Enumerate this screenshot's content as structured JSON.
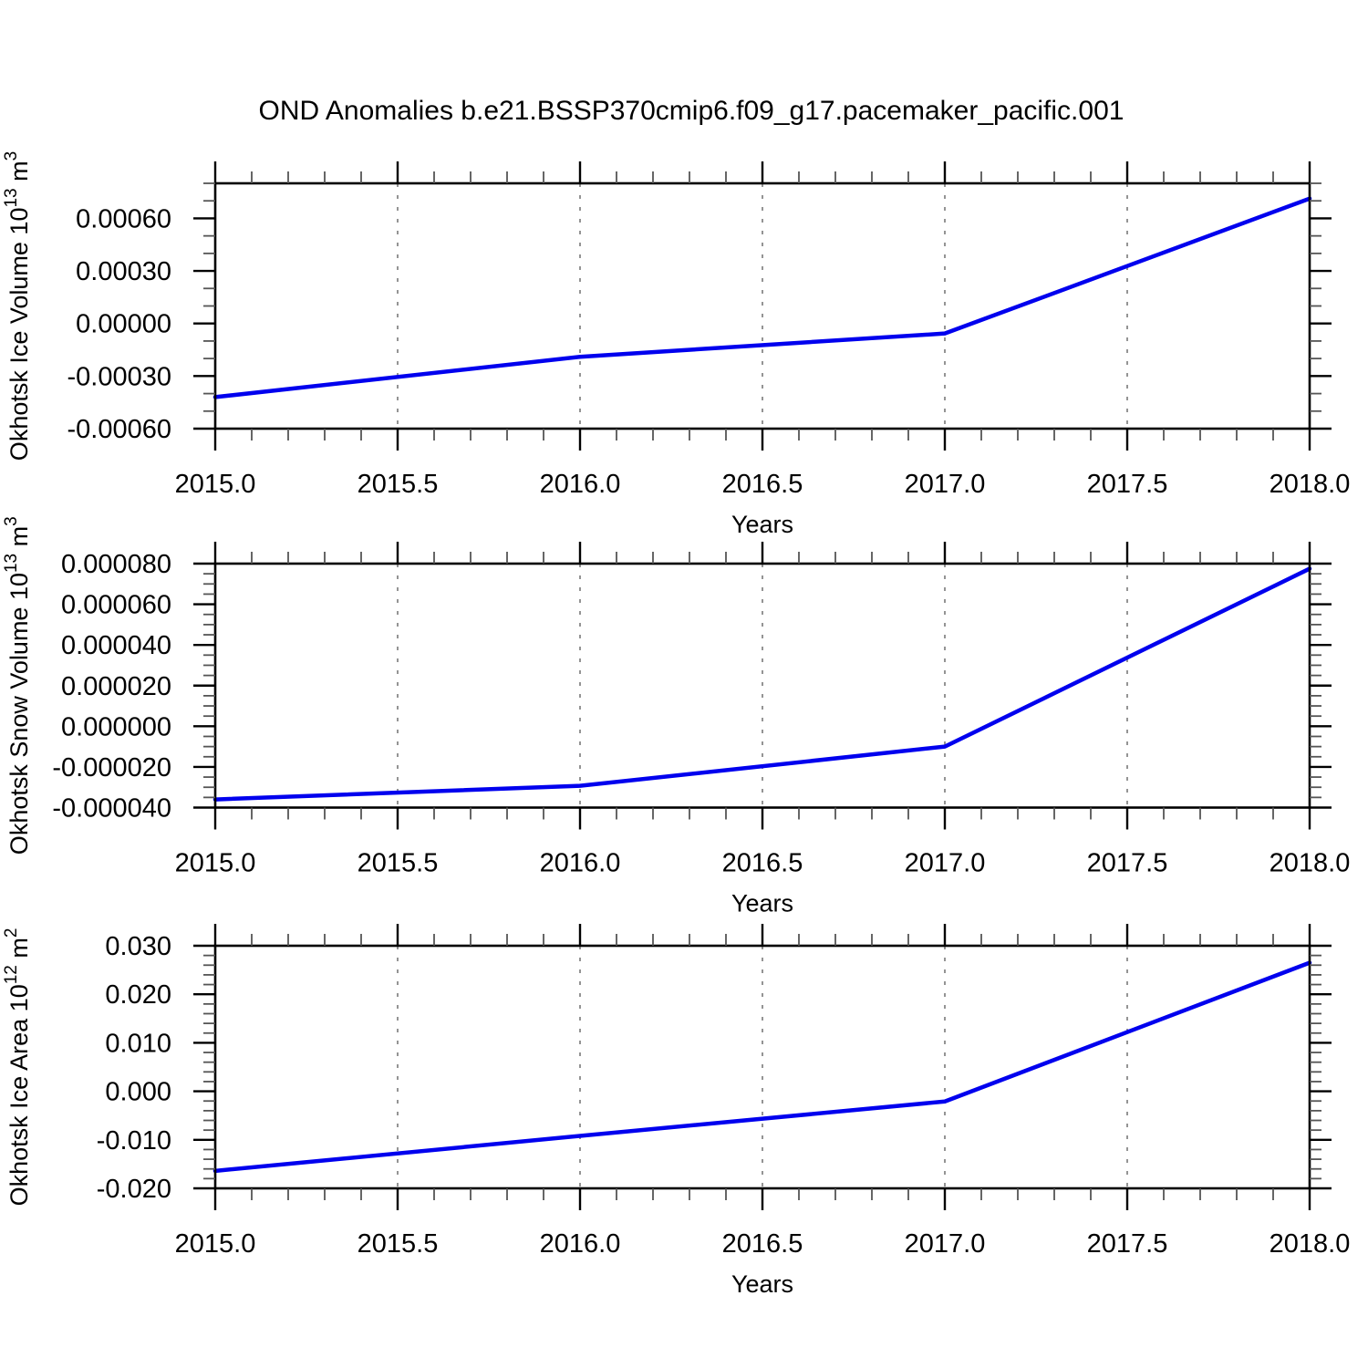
{
  "title": "OND Anomalies b.e21.BSSP370cmip6.f09_g17.pacemaker_pacific.001",
  "line_color": "#0000ee",
  "grid_color": "#7a7a7a",
  "chart_data": [
    {
      "type": "line",
      "id": "okhotsk-ice-volume",
      "series_name": "Okhotsk Ice Volume",
      "x": [
        2015.0,
        2016.0,
        2017.0,
        2018.0
      ],
      "y": [
        -0.00042,
        -0.00019,
        -5.7e-05,
        0.000713
      ],
      "xlabel": "Years",
      "ylabel_plain": "Okhotsk Ice Volume 10^13 m^3",
      "ylabel_parts": [
        {
          "t": "Okhotsk Ice Volume 10"
        },
        {
          "t": "13",
          "sup": true
        },
        {
          "t": " m"
        },
        {
          "t": "3",
          "sup": true
        }
      ],
      "xlim": [
        2015.0,
        2018.0
      ],
      "ylim": [
        -0.0006,
        0.0008
      ],
      "xticks": [
        2015.0,
        2015.5,
        2016.0,
        2016.5,
        2017.0,
        2017.5,
        2018.0
      ],
      "xtick_labels": [
        "2015.0",
        "2015.5",
        "2016.0",
        "2016.5",
        "2017.0",
        "2017.5",
        "2018.0"
      ],
      "x_minor_step": 0.1,
      "yticks": [
        0.0006,
        0.0003,
        0.0,
        -0.0003,
        -0.0006
      ],
      "ytick_labels": [
        "0.00060",
        "0.00030",
        "0.00000",
        "-0.00030",
        "-0.00060"
      ],
      "y_minor_step": 0.0001,
      "grid_x": [
        2015.5,
        2016.0,
        2016.5,
        2017.0,
        2017.5
      ],
      "grid_style": "dashed-vertical-only",
      "legend": "none"
    },
    {
      "type": "line",
      "id": "okhotsk-snow-volume",
      "series_name": "Okhotsk Snow Volume",
      "x": [
        2015.0,
        2016.0,
        2017.0,
        2018.0
      ],
      "y": [
        -3.6e-05,
        -2.93e-05,
        -1e-05,
        7.75e-05
      ],
      "xlabel": "Years",
      "ylabel_plain": "Okhotsk Snow Volume 10^13 m^3",
      "ylabel_parts": [
        {
          "t": "Okhotsk Snow Volume 10"
        },
        {
          "t": "13",
          "sup": true
        },
        {
          "t": " m"
        },
        {
          "t": "3",
          "sup": true
        }
      ],
      "xlim": [
        2015.0,
        2018.0
      ],
      "ylim": [
        -4e-05,
        8e-05
      ],
      "xticks": [
        2015.0,
        2015.5,
        2016.0,
        2016.5,
        2017.0,
        2017.5,
        2018.0
      ],
      "xtick_labels": [
        "2015.0",
        "2015.5",
        "2016.0",
        "2016.5",
        "2017.0",
        "2017.5",
        "2018.0"
      ],
      "x_minor_step": 0.1,
      "yticks": [
        8e-05,
        6e-05,
        4e-05,
        2e-05,
        0.0,
        -2e-05,
        -4e-05
      ],
      "ytick_labels": [
        "0.000080",
        "0.000060",
        "0.000040",
        "0.000020",
        "0.000000",
        "-0.000020",
        "-0.000040"
      ],
      "y_minor_step": 5e-06,
      "grid_x": [
        2015.5,
        2016.0,
        2016.5,
        2017.0,
        2017.5
      ],
      "grid_style": "dashed-vertical-only",
      "legend": "none"
    },
    {
      "type": "line",
      "id": "okhotsk-ice-area",
      "series_name": "Okhotsk Ice Area",
      "x": [
        2015.0,
        2016.0,
        2017.0,
        2018.0
      ],
      "y": [
        -0.0164,
        -0.0092,
        -0.0021,
        0.0265
      ],
      "xlabel": "Years",
      "ylabel_plain": "Okhotsk Ice Area 10^12 m^2",
      "ylabel_parts": [
        {
          "t": "Okhotsk Ice Area 10"
        },
        {
          "t": "12",
          "sup": true
        },
        {
          "t": " m"
        },
        {
          "t": "2",
          "sup": true
        }
      ],
      "xlim": [
        2015.0,
        2018.0
      ],
      "ylim": [
        -0.02,
        0.03
      ],
      "xticks": [
        2015.0,
        2015.5,
        2016.0,
        2016.5,
        2017.0,
        2017.5,
        2018.0
      ],
      "xtick_labels": [
        "2015.0",
        "2015.5",
        "2016.0",
        "2016.5",
        "2017.0",
        "2017.5",
        "2018.0"
      ],
      "x_minor_step": 0.1,
      "yticks": [
        0.03,
        0.02,
        0.01,
        0.0,
        -0.01,
        -0.02
      ],
      "ytick_labels": [
        "0.030",
        "0.020",
        "0.010",
        "0.000",
        "-0.010",
        "-0.020"
      ],
      "y_minor_step": 0.002,
      "grid_x": [
        2015.5,
        2016.0,
        2016.5,
        2017.0,
        2017.5
      ],
      "grid_style": "dashed-vertical-only",
      "legend": "none"
    }
  ]
}
